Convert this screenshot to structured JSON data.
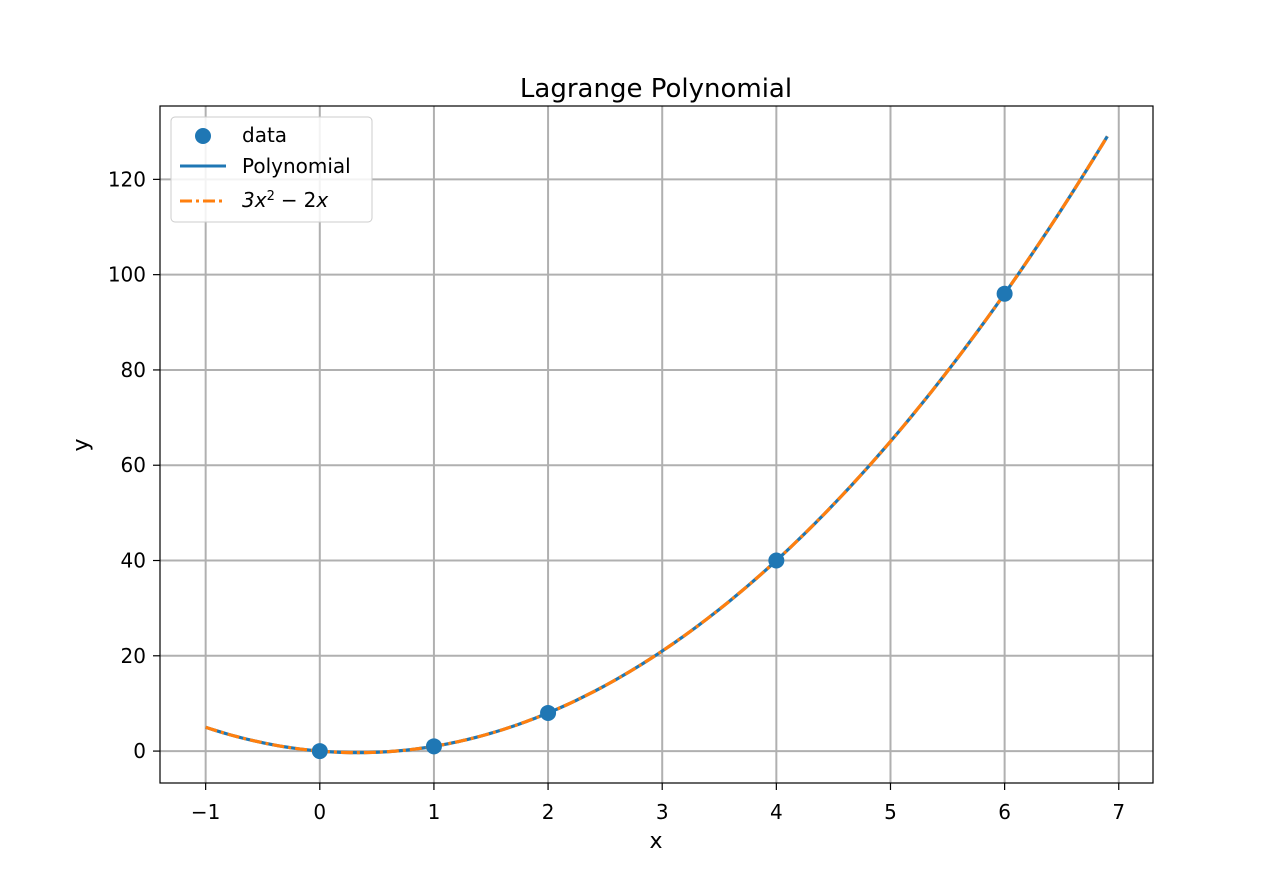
{
  "chart_data": {
    "type": "line",
    "title": "Lagrange Polynomial",
    "xlabel": "x",
    "ylabel": "y",
    "xlim": [
      -1.4,
      7.3
    ],
    "ylim": [
      -6.7,
      135.4
    ],
    "grid": true,
    "legend_position": "top-left",
    "x_ticks": [
      -1,
      0,
      1,
      2,
      3,
      4,
      5,
      6,
      7
    ],
    "x_tick_labels": [
      "−1",
      "0",
      "1",
      "2",
      "3",
      "4",
      "5",
      "6",
      "7"
    ],
    "y_ticks": [
      0,
      20,
      40,
      60,
      80,
      100,
      120
    ],
    "y_tick_labels": [
      "0",
      "20",
      "40",
      "60",
      "80",
      "100",
      "120"
    ],
    "curve_x_range": [
      -1,
      6.9
    ],
    "series": [
      {
        "name": "data",
        "kind": "scatter",
        "color": "#1f77b4",
        "x": [
          0,
          1,
          2,
          4,
          6
        ],
        "y": [
          0,
          1,
          8,
          40,
          96
        ]
      },
      {
        "name": "Polynomial",
        "kind": "line",
        "color": "#1f77b4",
        "style": "solid",
        "coefficients": [
          3,
          -2,
          0
        ]
      },
      {
        "name": "3x² − 2x",
        "legend_label": {
          "a": "3",
          "var1": "x",
          "exp": "2",
          "op": "−",
          "b": "2",
          "var2": "x"
        },
        "kind": "line",
        "color": "#ff7f0e",
        "style": "dashdot",
        "coefficients": [
          3,
          -2,
          0
        ]
      }
    ]
  }
}
